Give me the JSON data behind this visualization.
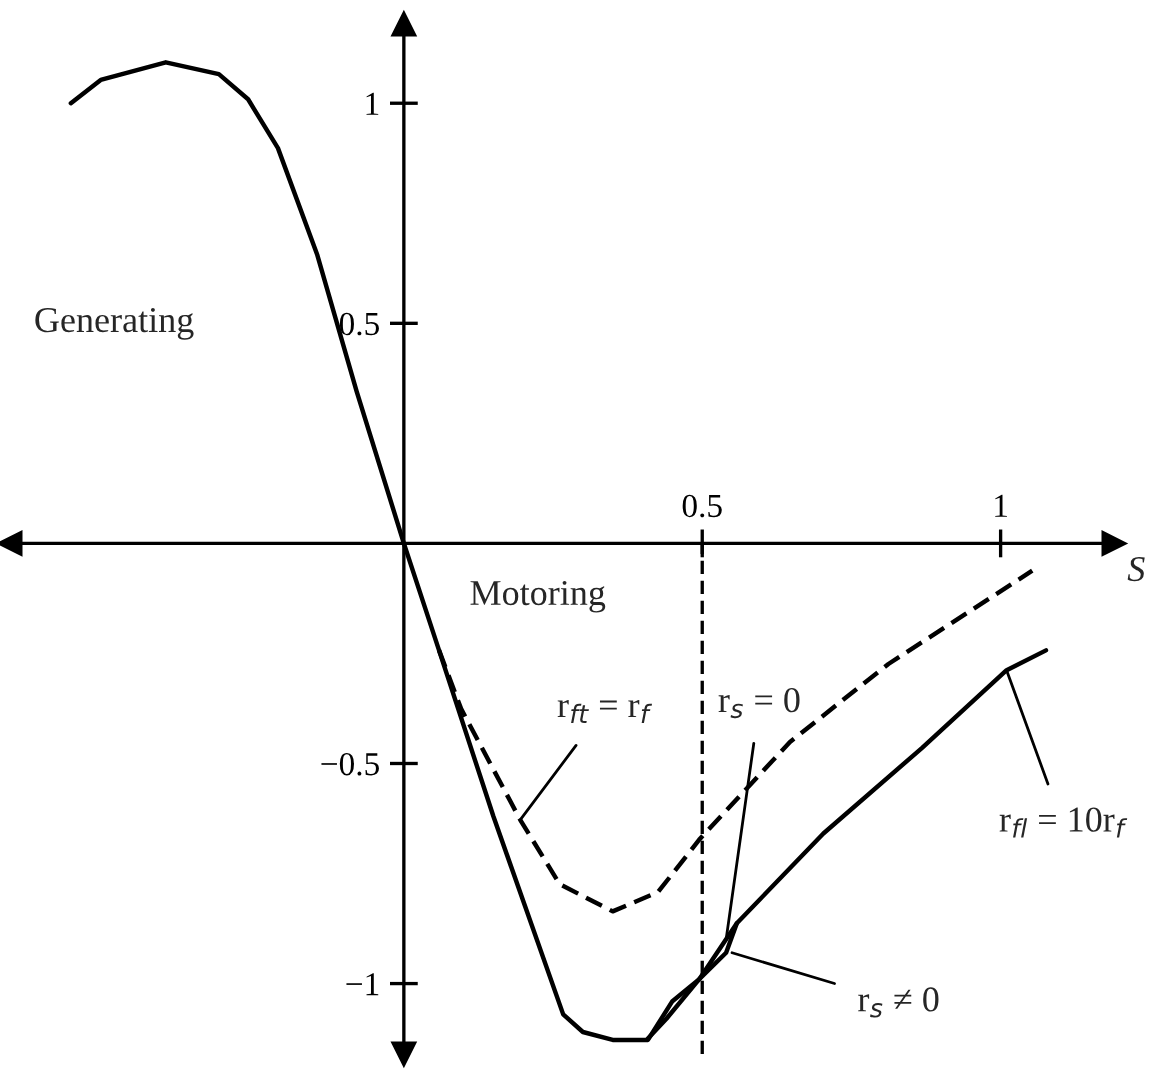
{
  "chart_data": {
    "type": "line",
    "xlabel": "S",
    "xlim": [
      -0.66,
      1.19
    ],
    "ylim": [
      -1.16,
      1.18
    ],
    "xticks": [
      0.5,
      1
    ],
    "yticks": [
      -1,
      -0.5,
      0.5,
      1
    ],
    "grid": false,
    "legend": false,
    "marker": "none",
    "series": [
      {
        "color": "#000000",
        "line_style": "solid",
        "x": [
          -0.558,
          -0.508,
          -0.399,
          -0.31,
          -0.261,
          -0.211,
          -0.145,
          -0.079,
          0,
          0.059,
          0.15,
          0.267,
          0.3,
          0.35,
          0.409,
          0.45,
          0.495,
          0.558,
          0.703,
          0.868,
          1.01,
          1.076
        ],
        "values": [
          1.0,
          1.053,
          1.093,
          1.066,
          1.009,
          0.898,
          0.655,
          0.345,
          0,
          -0.243,
          -0.62,
          -1.07,
          -1.11,
          -1.128,
          -1.128,
          -1.04,
          -0.99,
          -0.863,
          -0.659,
          -0.465,
          -0.288,
          -0.243
        ]
      },
      {
        "color": "#000000",
        "line_style": "solid",
        "x": [
          0.409,
          0.44,
          0.495,
          0.54,
          0.558
        ],
        "values": [
          -1.125,
          -1.08,
          -0.99,
          -0.93,
          -0.863
        ]
      },
      {
        "color": "#000000",
        "line_style": "dashed",
        "x": [
          0.059,
          0.096,
          0.195,
          0.261,
          0.35,
          0.426,
          0.495,
          0.647,
          0.812,
          1.053
        ],
        "values": [
          -0.243,
          -0.376,
          -0.628,
          -0.774,
          -0.836,
          -0.792,
          -0.673,
          -0.451,
          -0.274,
          -0.062
        ]
      }
    ],
    "ref_lines": [
      {
        "axis": "x",
        "value": 0.5,
        "color": "#000000",
        "line_style": "dashed"
      }
    ],
    "annotations": [
      "Generating",
      "Motoring",
      {
        "text": "r$_{ft}$ = r$_{f}$",
        "x": 0.195,
        "y": -0.628
      },
      {
        "text": "r$_{s}$ = 0",
        "x": 0.54,
        "y": -0.9
      },
      {
        "text": "r$_{s}$ ≠ 0",
        "x": 0.55,
        "y": -0.93
      },
      {
        "text": "r$_{fl}$ = 10r$_{f}$",
        "x": 1.01,
        "y": -0.288
      }
    ]
  }
}
